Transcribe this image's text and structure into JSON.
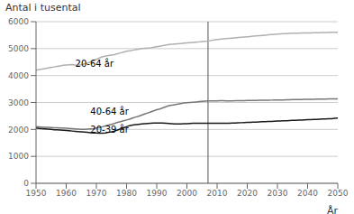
{
  "chart_data": {
    "type": "line",
    "ylabel": "Antal i tusental",
    "xlabel": "År",
    "xlim": [
      1950,
      2050
    ],
    "xticks": [
      1950,
      1960,
      1970,
      1980,
      1990,
      2000,
      2010,
      2020,
      2030,
      2040,
      2050
    ],
    "ylim": [
      0,
      6000
    ],
    "yticks": [
      0,
      1000,
      2000,
      3000,
      4000,
      5000,
      6000
    ],
    "grid": "y",
    "vline": 2007,
    "x": [
      1950,
      1951,
      1952,
      1953,
      1954,
      1955,
      1956,
      1957,
      1958,
      1959,
      1960,
      1961,
      1962,
      1963,
      1964,
      1965,
      1966,
      1967,
      1968,
      1969,
      1970,
      1971,
      1972,
      1973,
      1974,
      1975,
      1976,
      1977,
      1978,
      1979,
      1980,
      1981,
      1982,
      1983,
      1984,
      1985,
      1986,
      1987,
      1988,
      1989,
      1990,
      1991,
      1992,
      1993,
      1994,
      1995,
      1996,
      1997,
      1998,
      1999,
      2000,
      2001,
      2002,
      2003,
      2004,
      2005,
      2006,
      2007,
      2008,
      2009,
      2010,
      2011,
      2012,
      2013,
      2014,
      2015,
      2016,
      2017,
      2018,
      2019,
      2020,
      2021,
      2022,
      2023,
      2024,
      2025,
      2026,
      2027,
      2028,
      2029,
      2030,
      2031,
      2032,
      2033,
      2034,
      2035,
      2036,
      2037,
      2038,
      2039,
      2040,
      2041,
      2042,
      2043,
      2044,
      2045,
      2046,
      2047,
      2048,
      2049,
      2050
    ],
    "series": [
      {
        "color": "#b0b0b0",
        "values": [
          4200,
          4220,
          4240,
          4260,
          4280,
          4300,
          4320,
          4340,
          4360,
          4380,
          4390,
          4400,
          4410,
          4390,
          4380,
          4400,
          4430,
          4460,
          4500,
          4550,
          4600,
          4650,
          4700,
          4720,
          4740,
          4760,
          4780,
          4810,
          4840,
          4870,
          4900,
          4920,
          4940,
          4960,
          4980,
          5000,
          5010,
          5020,
          5030,
          5050,
          5070,
          5090,
          5110,
          5130,
          5150,
          5160,
          5170,
          5180,
          5190,
          5200,
          5210,
          5220,
          5230,
          5240,
          5250,
          5260,
          5270,
          5280,
          5300,
          5320,
          5340,
          5350,
          5360,
          5370,
          5380,
          5390,
          5400,
          5410,
          5420,
          5430,
          5440,
          5450,
          5460,
          5470,
          5480,
          5490,
          5500,
          5510,
          5520,
          5530,
          5540,
          5550,
          5555,
          5560,
          5565,
          5570,
          5575,
          5575,
          5580,
          5580,
          5585,
          5585,
          5590,
          5590,
          5592,
          5595,
          5598,
          5600,
          5605,
          5608,
          5610
        ]
      },
      {
        "color": "#777777",
        "values": [
          2100,
          2095,
          2090,
          2080,
          2075,
          2070,
          2065,
          2060,
          2055,
          2050,
          2045,
          2040,
          2030,
          2020,
          2010,
          2000,
          2000,
          2010,
          2020,
          2030,
          2050,
          2070,
          2100,
          2130,
          2160,
          2190,
          2220,
          2260,
          2290,
          2320,
          2350,
          2380,
          2420,
          2460,
          2490,
          2530,
          2570,
          2610,
          2650,
          2690,
          2730,
          2760,
          2800,
          2840,
          2880,
          2900,
          2920,
          2940,
          2960,
          2980,
          2990,
          3000,
          3010,
          3020,
          3030,
          3040,
          3050,
          3060,
          3055,
          3055,
          3060,
          3065,
          3065,
          3060,
          3060,
          3060,
          3063,
          3065,
          3068,
          3070,
          3072,
          3074,
          3076,
          3078,
          3080,
          3082,
          3084,
          3086,
          3088,
          3090,
          3092,
          3094,
          3096,
          3098,
          3100,
          3105,
          3108,
          3110,
          3112,
          3114,
          3116,
          3118,
          3120,
          3122,
          3124,
          3126,
          3128,
          3130,
          3132,
          3135,
          3138
        ]
      },
      {
        "color": "#1a1a1a",
        "values": [
          2050,
          2040,
          2030,
          2020,
          2010,
          2000,
          1990,
          1985,
          1980,
          1970,
          1960,
          1950,
          1940,
          1930,
          1920,
          1910,
          1900,
          1890,
          1880,
          1870,
          1865,
          1860,
          1860,
          1870,
          1890,
          1910,
          1940,
          1980,
          2020,
          2060,
          2100,
          2140,
          2160,
          2180,
          2190,
          2200,
          2210,
          2220,
          2230,
          2235,
          2240,
          2240,
          2235,
          2230,
          2220,
          2210,
          2200,
          2200,
          2205,
          2210,
          2215,
          2220,
          2225,
          2225,
          2225,
          2225,
          2230,
          2230,
          2230,
          2225,
          2225,
          2225,
          2225,
          2230,
          2230,
          2235,
          2240,
          2245,
          2250,
          2255,
          2260,
          2265,
          2270,
          2275,
          2280,
          2285,
          2290,
          2295,
          2300,
          2305,
          2310,
          2315,
          2320,
          2325,
          2330,
          2335,
          2340,
          2345,
          2350,
          2355,
          2360,
          2365,
          2370,
          2375,
          2380,
          2385,
          2390,
          2395,
          2400,
          2410,
          2420
        ]
      }
    ],
    "annotations": [
      {
        "text": "20-64 år",
        "x": 1963,
        "y": 4250
      },
      {
        "text": "40-64 år",
        "x": 1968,
        "y": 2490
      },
      {
        "text": "20-39 år",
        "x": 1968,
        "y": 1820
      }
    ]
  }
}
